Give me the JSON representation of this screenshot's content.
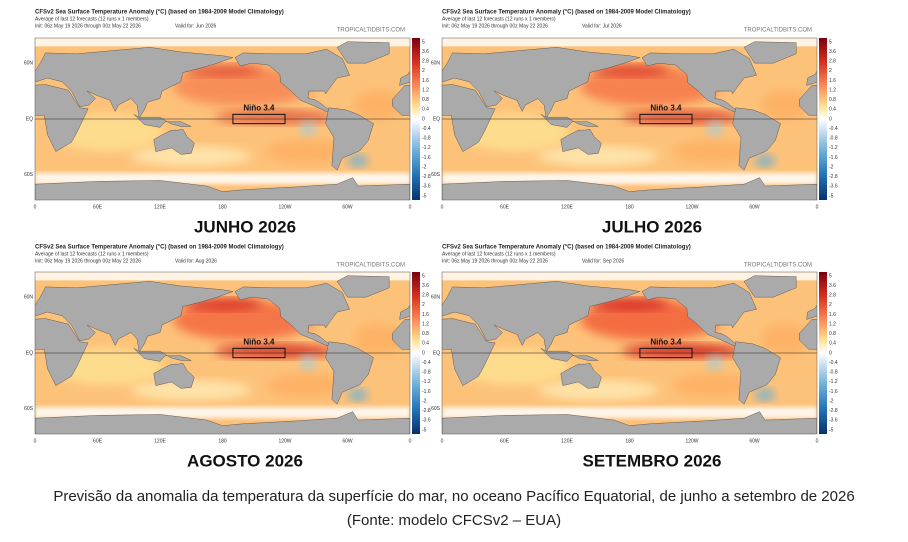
{
  "panels": [
    {
      "header": {
        "title": "CFSv2 Sea Surface Temperature Anomaly (°C) (based on 1984-2009 Model Climatology)",
        "members": "Average of last 12 forecasts (12 runs x 1 members)",
        "init": "Init: 06z May 19 2026 through 00z May 22 2026",
        "valid": "Valid for: Jun 2026",
        "source": "TROPICALTIDBITS.COM"
      },
      "lat_labels": [
        "60N",
        "EQ",
        "60S"
      ],
      "lon_labels": [
        "0",
        "60E",
        "120E",
        "180",
        "120W",
        "60W",
        "0"
      ],
      "colorbar_labels": [
        "5",
        "3.6",
        "2.8",
        "2",
        "1.6",
        "1.2",
        "0.8",
        "0.4",
        "0",
        "-0.4",
        "-0.8",
        "-1.2",
        "-1.6",
        "-2",
        "-2.8",
        "-3.6",
        "-5"
      ],
      "region_label": "Niño 3.4",
      "month": "JUNHO 2026"
    },
    {
      "header": {
        "title": "CFSv2 Sea Surface Temperature Anomaly (°C) (based on 1984-2009 Model Climatology)",
        "members": "Average of last 12 forecasts (12 runs x 1 members)",
        "init": "Init: 06z May 19 2026 through 00z May 22 2026",
        "valid": "Valid for: Jul 2026",
        "source": "TROPICALTIDBITS.COM"
      },
      "lat_labels": [
        "60N",
        "EQ",
        "60S"
      ],
      "lon_labels": [
        "0",
        "60E",
        "120E",
        "180",
        "120W",
        "60W",
        "0"
      ],
      "colorbar_labels": [
        "5",
        "3.6",
        "2.8",
        "2",
        "1.6",
        "1.2",
        "0.8",
        "0.4",
        "0",
        "-0.4",
        "-0.8",
        "-1.2",
        "-1.6",
        "-2",
        "-2.8",
        "-3.6",
        "-5"
      ],
      "region_label": "Niño 3.4",
      "month": "JULHO 2026"
    },
    {
      "header": {
        "title": "CFSv2 Sea Surface Temperature Anomaly (°C) (based on 1984-2009 Model Climatology)",
        "members": "Average of last 12 forecasts (12 runs x 1 members)",
        "init": "Init: 06z May 19 2026 through 00z May 22 2026",
        "valid": "Valid for: Aug 2026",
        "source": "TROPICALTIDBITS.COM"
      },
      "lat_labels": [
        "60N",
        "EQ",
        "60S"
      ],
      "lon_labels": [
        "0",
        "60E",
        "120E",
        "180",
        "120W",
        "60W",
        "0"
      ],
      "colorbar_labels": [
        "5",
        "3.6",
        "2.8",
        "2",
        "1.6",
        "1.2",
        "0.8",
        "0.4",
        "0",
        "-0.4",
        "-0.8",
        "-1.2",
        "-1.6",
        "-2",
        "-2.8",
        "-3.6",
        "-5"
      ],
      "region_label": "Niño 3.4",
      "month": "AGOSTO 2026"
    },
    {
      "header": {
        "title": "CFSv2 Sea Surface Temperature Anomaly (°C) (based on 1984-2009 Model Climatology)",
        "members": "Average of last 12 forecasts (12 runs x 1 members)",
        "init": "Init: 06z May 19 2026 through 00z May 22 2026",
        "valid": "Valid for: Sep 2026",
        "source": "TROPICALTIDBITS.COM"
      },
      "lat_labels": [
        "60N",
        "EQ",
        "60S"
      ],
      "lon_labels": [
        "0",
        "60E",
        "120E",
        "180",
        "120W",
        "60W",
        "0"
      ],
      "colorbar_labels": [
        "5",
        "3.6",
        "2.8",
        "2",
        "1.6",
        "1.2",
        "0.8",
        "0.4",
        "0",
        "-0.4",
        "-0.8",
        "-1.2",
        "-1.6",
        "-2",
        "-2.8",
        "-3.6",
        "-5"
      ],
      "region_label": "Niño 3.4",
      "month": "SETEMBRO 2026"
    }
  ],
  "caption": [
    "Previsão da anomalia da temperatura da superfície do mar, no oceano Pacífico Equatorial, de junho a setembro de 2026",
    "(Fonte: modelo CFCSv2 – EUA)"
  ]
}
